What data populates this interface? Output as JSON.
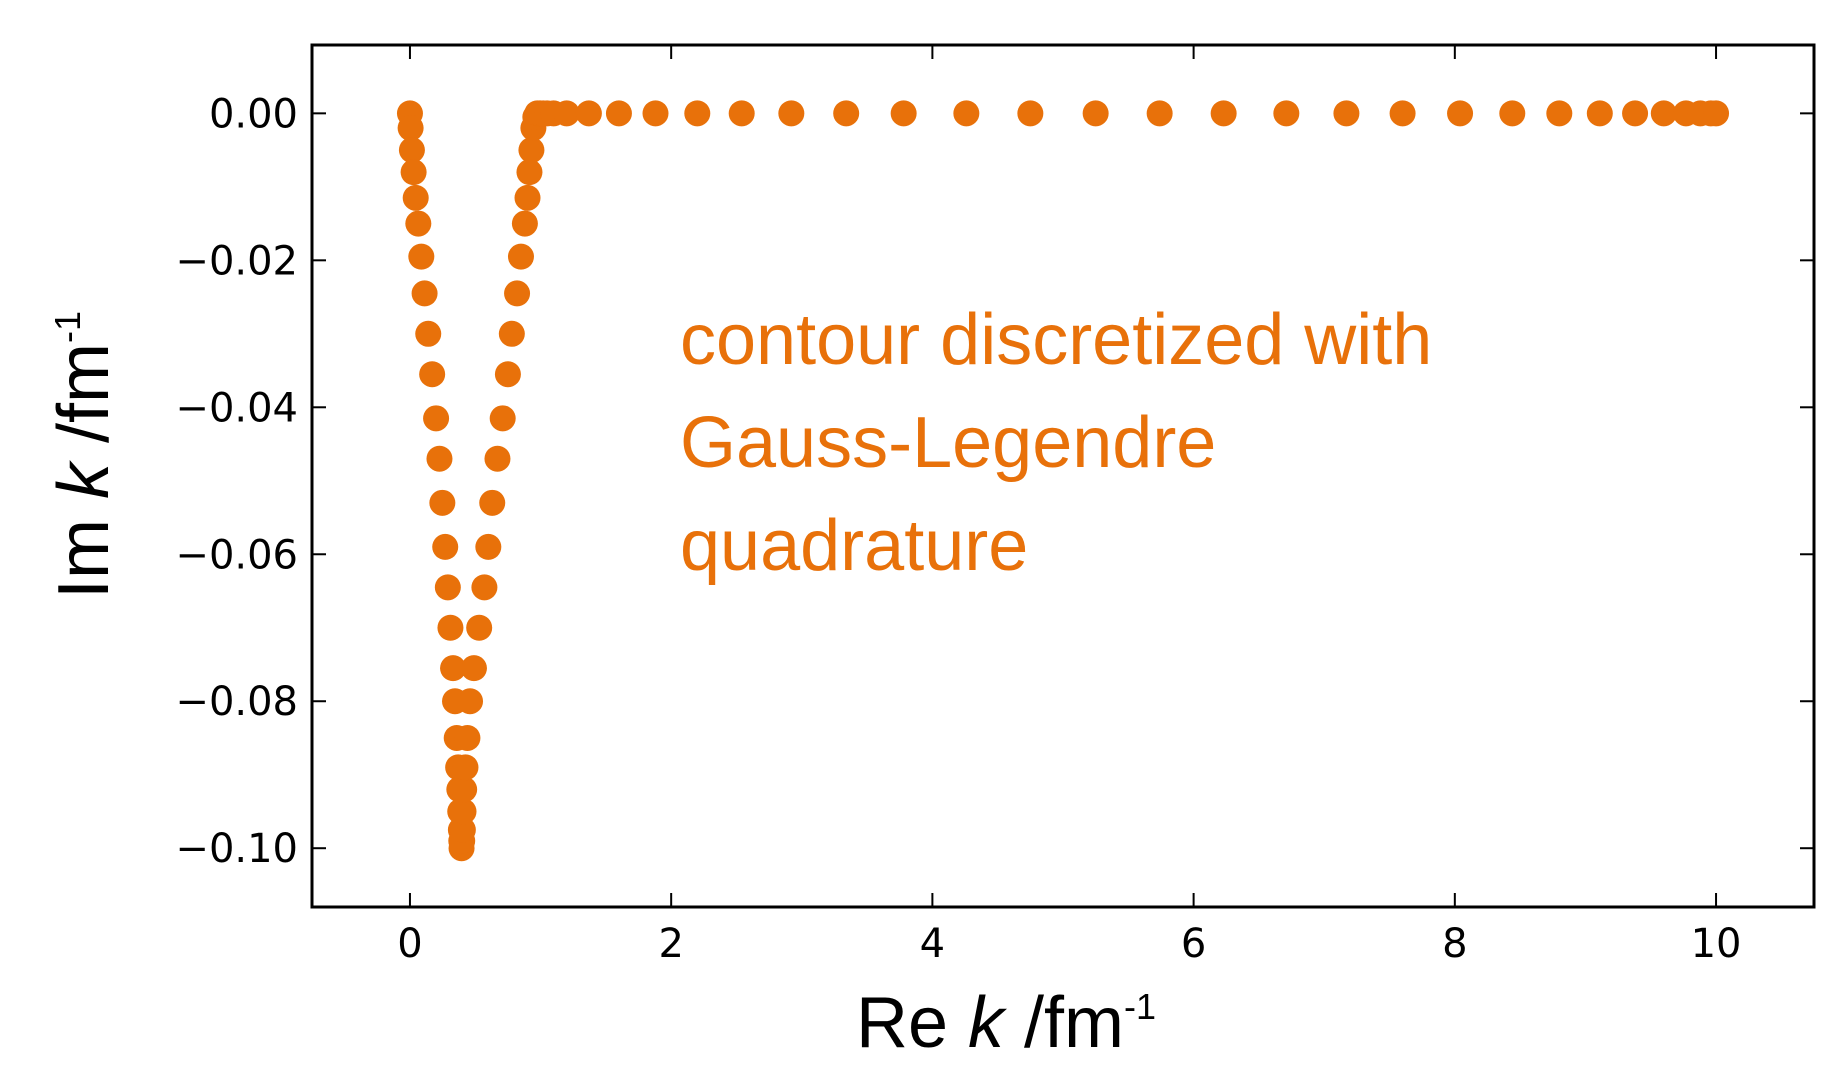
{
  "chart_data": {
    "type": "scatter",
    "xlabel": {
      "prefix": "Re ",
      "var": "k",
      "unit": " /fm",
      "exp": "-1"
    },
    "ylabel": {
      "prefix": "Im ",
      "var": "k",
      "unit": " /fm",
      "exp": "-1"
    },
    "xlim": [
      -0.75,
      10.75
    ],
    "ylim": [
      -0.108,
      0.0093
    ],
    "x_ticks": [
      0,
      2,
      4,
      6,
      8,
      10
    ],
    "x_tick_labels": [
      "0",
      "2",
      "4",
      "6",
      "8",
      "10"
    ],
    "y_ticks": [
      0.0,
      -0.02,
      -0.04,
      -0.06,
      -0.08,
      -0.1
    ],
    "y_tick_labels": [
      "0.00",
      "−0.02",
      "−0.04",
      "−0.06",
      "−0.08",
      "−0.10"
    ],
    "grid": false,
    "marker_color": "#e8710a",
    "annotation": [
      "contour discretized with",
      "Gauss-Legendre",
      "quadrature"
    ],
    "series": [
      {
        "x": [
          0.0,
          0.005,
          0.015,
          0.028,
          0.044,
          0.064,
          0.087,
          0.112,
          0.14,
          0.17,
          0.2,
          0.226,
          0.248,
          0.27,
          0.29,
          0.31,
          0.33,
          0.345,
          0.358,
          0.369,
          0.378,
          0.385,
          0.39,
          0.393,
          0.395,
          0.4,
          0.405,
          0.41,
          0.415,
          0.425,
          0.44,
          0.46,
          0.49,
          0.53,
          0.57,
          0.6,
          0.63,
          0.67,
          0.71,
          0.75,
          0.78,
          0.82,
          0.85,
          0.88,
          0.9,
          0.915,
          0.93,
          0.945,
          0.96,
          0.975,
          0.99,
          1.0,
          1.02,
          1.05,
          1.1,
          1.2,
          1.37,
          1.6,
          1.88,
          2.2,
          2.54,
          2.92,
          3.34,
          3.78,
          4.26,
          4.75,
          5.25,
          5.74,
          6.23,
          6.71,
          7.17,
          7.6,
          8.04,
          8.44,
          8.8,
          9.11,
          9.38,
          9.6,
          9.77,
          9.88,
          9.96,
          10.0
        ],
        "y": [
          0.0,
          -0.002,
          -0.005,
          -0.008,
          -0.0115,
          -0.015,
          -0.0195,
          -0.0245,
          -0.03,
          -0.0355,
          -0.0415,
          -0.047,
          -0.053,
          -0.059,
          -0.0645,
          -0.07,
          -0.0755,
          -0.08,
          -0.085,
          -0.089,
          -0.092,
          -0.095,
          -0.0975,
          -0.099,
          -0.1,
          -0.099,
          -0.0975,
          -0.095,
          -0.092,
          -0.089,
          -0.085,
          -0.08,
          -0.0755,
          -0.07,
          -0.0645,
          -0.059,
          -0.053,
          -0.047,
          -0.0415,
          -0.0355,
          -0.03,
          -0.0245,
          -0.0195,
          -0.015,
          -0.0115,
          -0.008,
          -0.005,
          -0.002,
          -0.0005,
          0.0,
          0.0,
          0.0,
          0.0,
          0.0,
          0.0,
          0.0,
          0.0,
          0.0,
          0.0,
          0.0,
          0.0,
          0.0,
          0.0,
          0.0,
          0.0,
          0.0,
          0.0,
          0.0,
          0.0,
          0.0,
          0.0,
          0.0,
          0.0,
          0.0,
          0.0,
          0.0,
          0.0,
          0.0,
          0.0,
          0.0,
          0.0,
          0.0
        ]
      }
    ]
  }
}
